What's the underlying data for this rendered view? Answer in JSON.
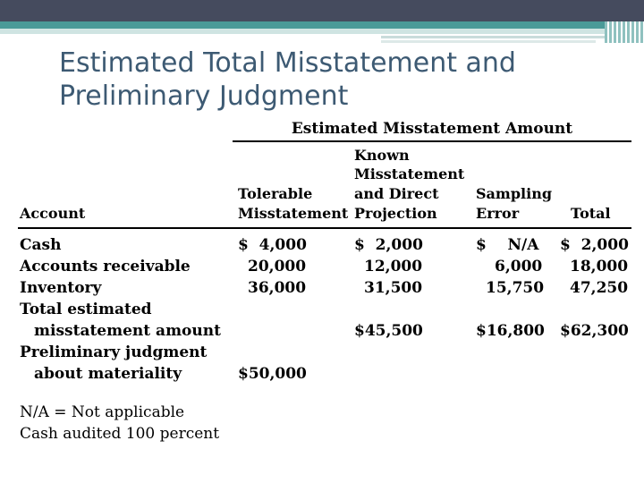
{
  "title": "Estimated Total Misstatement and Preliminary Judgment",
  "group_header": "Estimated Misstatement Amount",
  "columns": {
    "account": "Account",
    "tolerable": [
      "Tolerable",
      "Misstatement"
    ],
    "known": [
      "Known",
      "Misstatement",
      "and Direct",
      "Projection"
    ],
    "sampling": [
      "Sampling",
      "Error"
    ],
    "total": "Total"
  },
  "rows": [
    {
      "account": "Cash",
      "tolerable": "$  4,000",
      "known": "$  2,000",
      "sampling": "$    N/A",
      "total": "$  2,000"
    },
    {
      "account": "Accounts receivable",
      "tolerable": "20,000",
      "known": "12,000",
      "sampling": "6,000",
      "total": "18,000"
    },
    {
      "account": "Inventory",
      "tolerable": "36,000",
      "known": "31,500",
      "sampling": "15,750",
      "total": "47,250"
    },
    {
      "account_line1": "Total estimated",
      "account_line2": "misstatement amount",
      "known": "$45,500",
      "sampling": "$16,800",
      "total": "$62,300"
    },
    {
      "account_line1": "Preliminary judgment",
      "account_line2": "about materiality",
      "tolerable": "$50,000"
    }
  ],
  "notes": [
    "N/A = Not applicable",
    "Cash audited 100 percent"
  ]
}
